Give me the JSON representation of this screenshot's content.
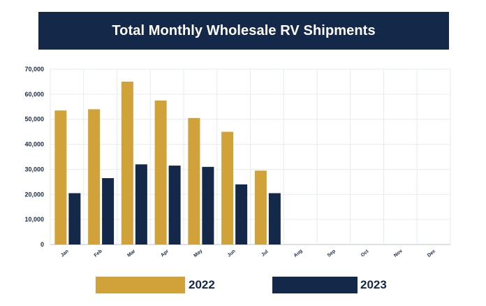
{
  "title": "Total Monthly Wholesale RV Shipments",
  "chart_data": {
    "type": "bar",
    "title": "Total Monthly Wholesale RV Shipments",
    "categories": [
      "Jan",
      "Feb",
      "Mar",
      "Apr",
      "May",
      "Jun",
      "Jul",
      "Aug",
      "Sep",
      "Oct",
      "Nov",
      "Dec"
    ],
    "series": [
      {
        "name": "2022",
        "color": "#d1a23a",
        "values": [
          53500,
          54000,
          65000,
          57500,
          50500,
          45000,
          29500,
          null,
          null,
          null,
          null,
          null
        ]
      },
      {
        "name": "2023",
        "color": "#14294a",
        "values": [
          20500,
          26500,
          32000,
          31500,
          31000,
          24000,
          20500,
          null,
          null,
          null,
          null,
          null
        ]
      }
    ],
    "yticks": [
      "0",
      "10,000",
      "20,000",
      "30,000",
      "40,000",
      "50,000",
      "60,000",
      "70,000"
    ],
    "ylim": [
      0,
      70000
    ],
    "xlabel": "",
    "ylabel": "",
    "grid": true,
    "legend_position": "bottom"
  }
}
